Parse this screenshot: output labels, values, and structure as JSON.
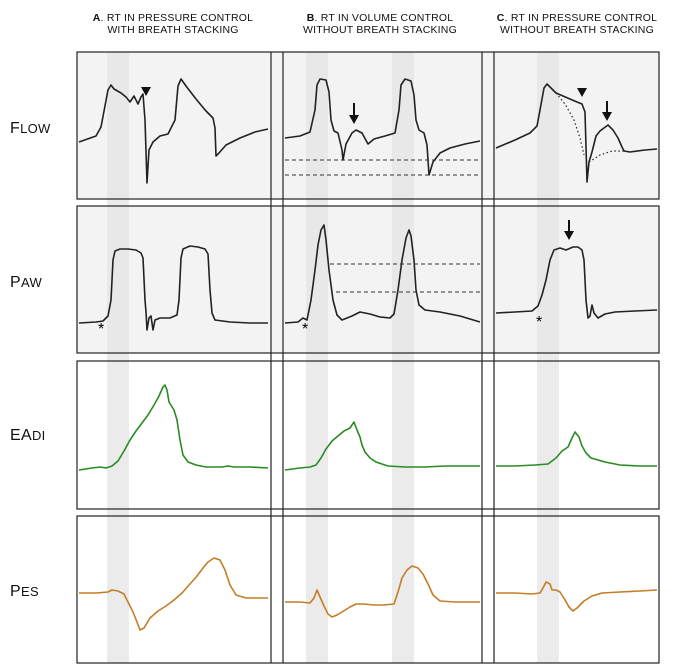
{
  "columns": [
    {
      "letter": "A",
      "line1": "RT IN PRESSURE CONTROL",
      "line2": "WITH BREATH STACKING"
    },
    {
      "letter": "B",
      "line1": "RT IN VOLUME CONTROL",
      "line2": "WITHOUT BREATH STACKING"
    },
    {
      "letter": "C",
      "line1": "RT IN PRESSURE CONTROL",
      "line2": "WITHOUT BREATH STACKING"
    }
  ],
  "rows": [
    {
      "first": "F",
      "rest": "LOW"
    },
    {
      "first": "P",
      "rest": "AW"
    },
    {
      "first": "EA",
      "rest": "DI"
    },
    {
      "first": "P",
      "rest": "ES"
    }
  ],
  "markers": {
    "asterisk": "*"
  },
  "colors": {
    "trace_black": "#222222",
    "trace_green": "#2a8a22",
    "trace_orange": "#c37d25",
    "panel_fill": "#f3f3f3",
    "band": "#e2e2e2"
  }
}
